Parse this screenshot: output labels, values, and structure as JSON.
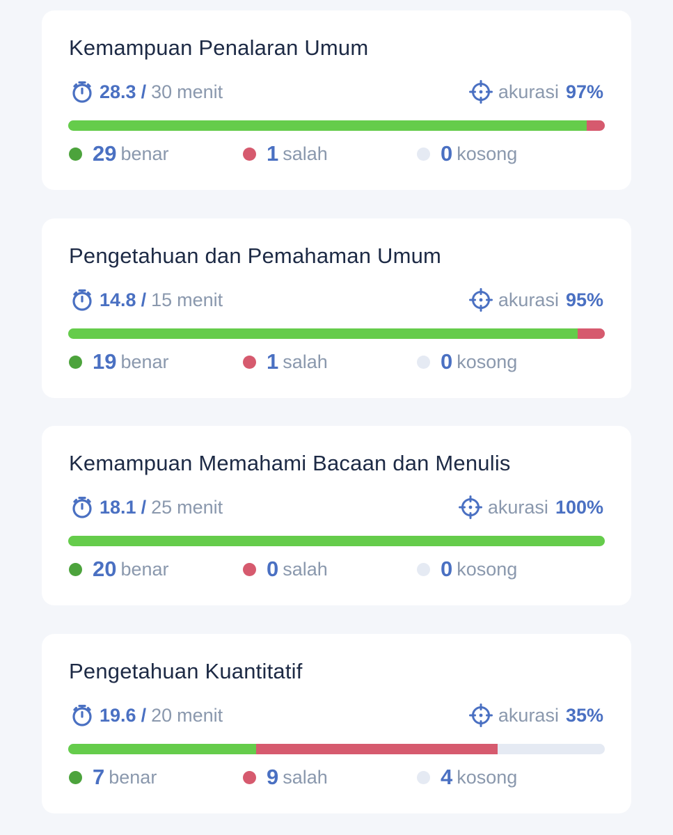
{
  "colors": {
    "page_background": "#f4f6fa",
    "card_background": "#ffffff",
    "title": "#1d2a45",
    "accent": "#4a70c2",
    "muted": "#8a98ad",
    "correct": "#65cc4b",
    "correct_dot": "#4ca33c",
    "wrong": "#d65a6e",
    "empty": "#e5eaf3"
  },
  "icons": {
    "time": "stopwatch-icon",
    "accuracy": "crosshair-target-icon",
    "correct": "green-dot",
    "wrong": "red-dot",
    "empty": "light-grey-dot"
  },
  "labels": {
    "slash": "/",
    "minutes_unit": "menit",
    "accuracy_label": "akurasi",
    "correct_label": "benar",
    "wrong_label": "salah",
    "empty_label": "kosong"
  },
  "sections": [
    {
      "title": "Kemampuan Penalaran Umum",
      "time_used": "28.3",
      "time_total": "30",
      "accuracy": "97%",
      "correct": "29",
      "wrong": "1",
      "empty": "0"
    },
    {
      "title": "Pengetahuan dan Pemahaman Umum",
      "time_used": "14.8",
      "time_total": "15",
      "accuracy": "95%",
      "correct": "19",
      "wrong": "1",
      "empty": "0"
    },
    {
      "title": "Kemampuan Memahami Bacaan dan Menulis",
      "time_used": "18.1",
      "time_total": "25",
      "accuracy": "100%",
      "correct": "20",
      "wrong": "0",
      "empty": "0"
    },
    {
      "title": "Pengetahuan Kuantitatif",
      "time_used": "19.6",
      "time_total": "20",
      "accuracy": "35%",
      "correct": "7",
      "wrong": "9",
      "empty": "4"
    }
  ]
}
